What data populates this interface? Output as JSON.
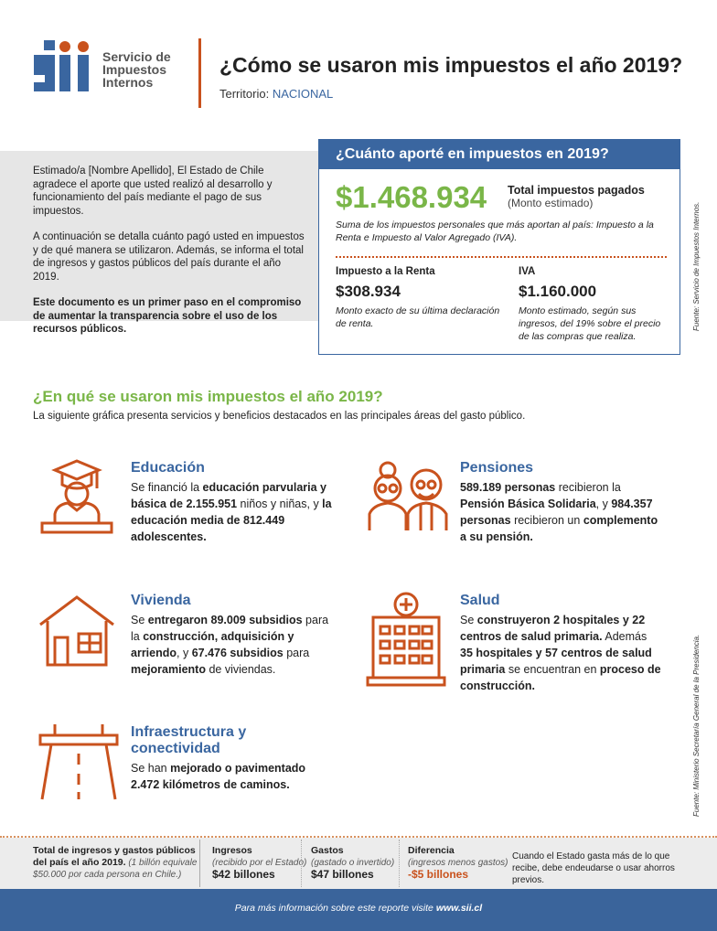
{
  "header": {
    "logo_letters": "Sii",
    "logo_text": [
      "Servicio de",
      "Impuestos",
      "Internos"
    ],
    "title": "¿Cómo se usaron mis impuestos el año 2019?",
    "territory_label": "Territorio:",
    "territory_value": "NACIONAL"
  },
  "intro": {
    "p1": "Estimado/a [Nombre Apellido], El Estado de Chile agradece el aporte que usted realizó al desarrollo y funcionamiento del país mediante el pago de sus impuestos.",
    "p2": "A continuación se detalla cuánto pagó usted en impuestos y de qué manera se utilizaron. Además, se informa el total de ingresos y gastos públicos del país durante el año 2019.",
    "p3": "Este documento es un primer paso en el compromiso de aumentar la transparencia sobre el uso de los recursos públicos."
  },
  "box": {
    "title": "¿Cuánto aporté en impuestos en 2019?",
    "total": "$1.468.934",
    "total_label": "Total impuestos pagados",
    "total_note": "(Monto estimado)",
    "summary": "Suma de los impuestos personales que más aportan al país: Impuesto a la Renta e Impuesto al Valor Agregado (IVA).",
    "renta_label": "Impuesto a la Renta",
    "renta_value": "$308.934",
    "renta_note": "Monto exacto de su última declaración de renta.",
    "iva_label": "IVA",
    "iva_value": "$1.160.000",
    "iva_note": "Monto estimado, según sus ingresos, del 19% sobre el precio de las compras que realiza.",
    "source": "Fuente: Servicio de Impuestos Internos."
  },
  "section": {
    "title": "¿En qué se usaron mis impuestos el año 2019?",
    "subtitle": "La siguiente gráfica presenta servicios y beneficios destacados en las principales áreas del gasto público.",
    "source": "Fuente: Ministerio Secretaría General de la Presidencia."
  },
  "items": {
    "educacion": {
      "title": "Educación",
      "t1": "Se financió la ",
      "b1": "educación parvularia y básica de 2.155.951",
      "t2": " niños y niñas, y ",
      "b2": "la educación media de 812.449 adolescentes."
    },
    "pensiones": {
      "title": "Pensiones",
      "b1": "589.189 personas",
      "t1": " recibieron la ",
      "b2": "Pensión Básica Solidaria",
      "t2": ", y ",
      "b3": "984.357 personas",
      "t3": " recibieron un ",
      "b4": "complemento a su pensión."
    },
    "vivienda": {
      "title": "Vivienda",
      "t1": "Se ",
      "b1": "entregaron 89.009 subsidios",
      "t2": " para la ",
      "b2": "construcción, adquisición y arriendo",
      "t3": ", y ",
      "b3": "67.476 subsidios",
      "t4": " para ",
      "b4": "mejoramiento",
      "t5": " de viviendas."
    },
    "salud": {
      "title": "Salud",
      "t1": "Se ",
      "b1": "construyeron 2 hospitales y 22 centros de salud primaria.",
      "t2": " Además ",
      "b2": "35 hospitales y 57 centros de salud primaria",
      "t3": " se encuentran en ",
      "b3": "proceso de construcción."
    },
    "infra": {
      "title": "Infraestructura y conectividad",
      "t1": "Se han ",
      "b1": "mejorado o pavimentado 2.472 kilómetros de caminos."
    }
  },
  "footer": {
    "total_title": "Total de ingresos y gastos públicos del país el año 2019.",
    "total_note": "(1 billón equivale $50.000 por cada persona en Chile.)",
    "ingresos_label": "Ingresos",
    "ingresos_note": "(recibido por el Estado)",
    "ingresos_value": "$42 billones",
    "gastos_label": "Gastos",
    "gastos_note": "(gastado o invertido)",
    "gastos_value": "$47 billones",
    "dif_label": "Diferencia",
    "dif_note": "(ingresos menos gastos)",
    "dif_value": "-$5 billones",
    "explain": "Cuando el Estado gasta más de lo que recibe, debe endeudarse o usar ahorros previos.",
    "more_text": "Para más información sobre este reporte visite ",
    "more_link": "www.sii.cl"
  },
  "colors": {
    "blue": "#3a66a0",
    "orange": "#c9521d",
    "green": "#7ab648"
  }
}
